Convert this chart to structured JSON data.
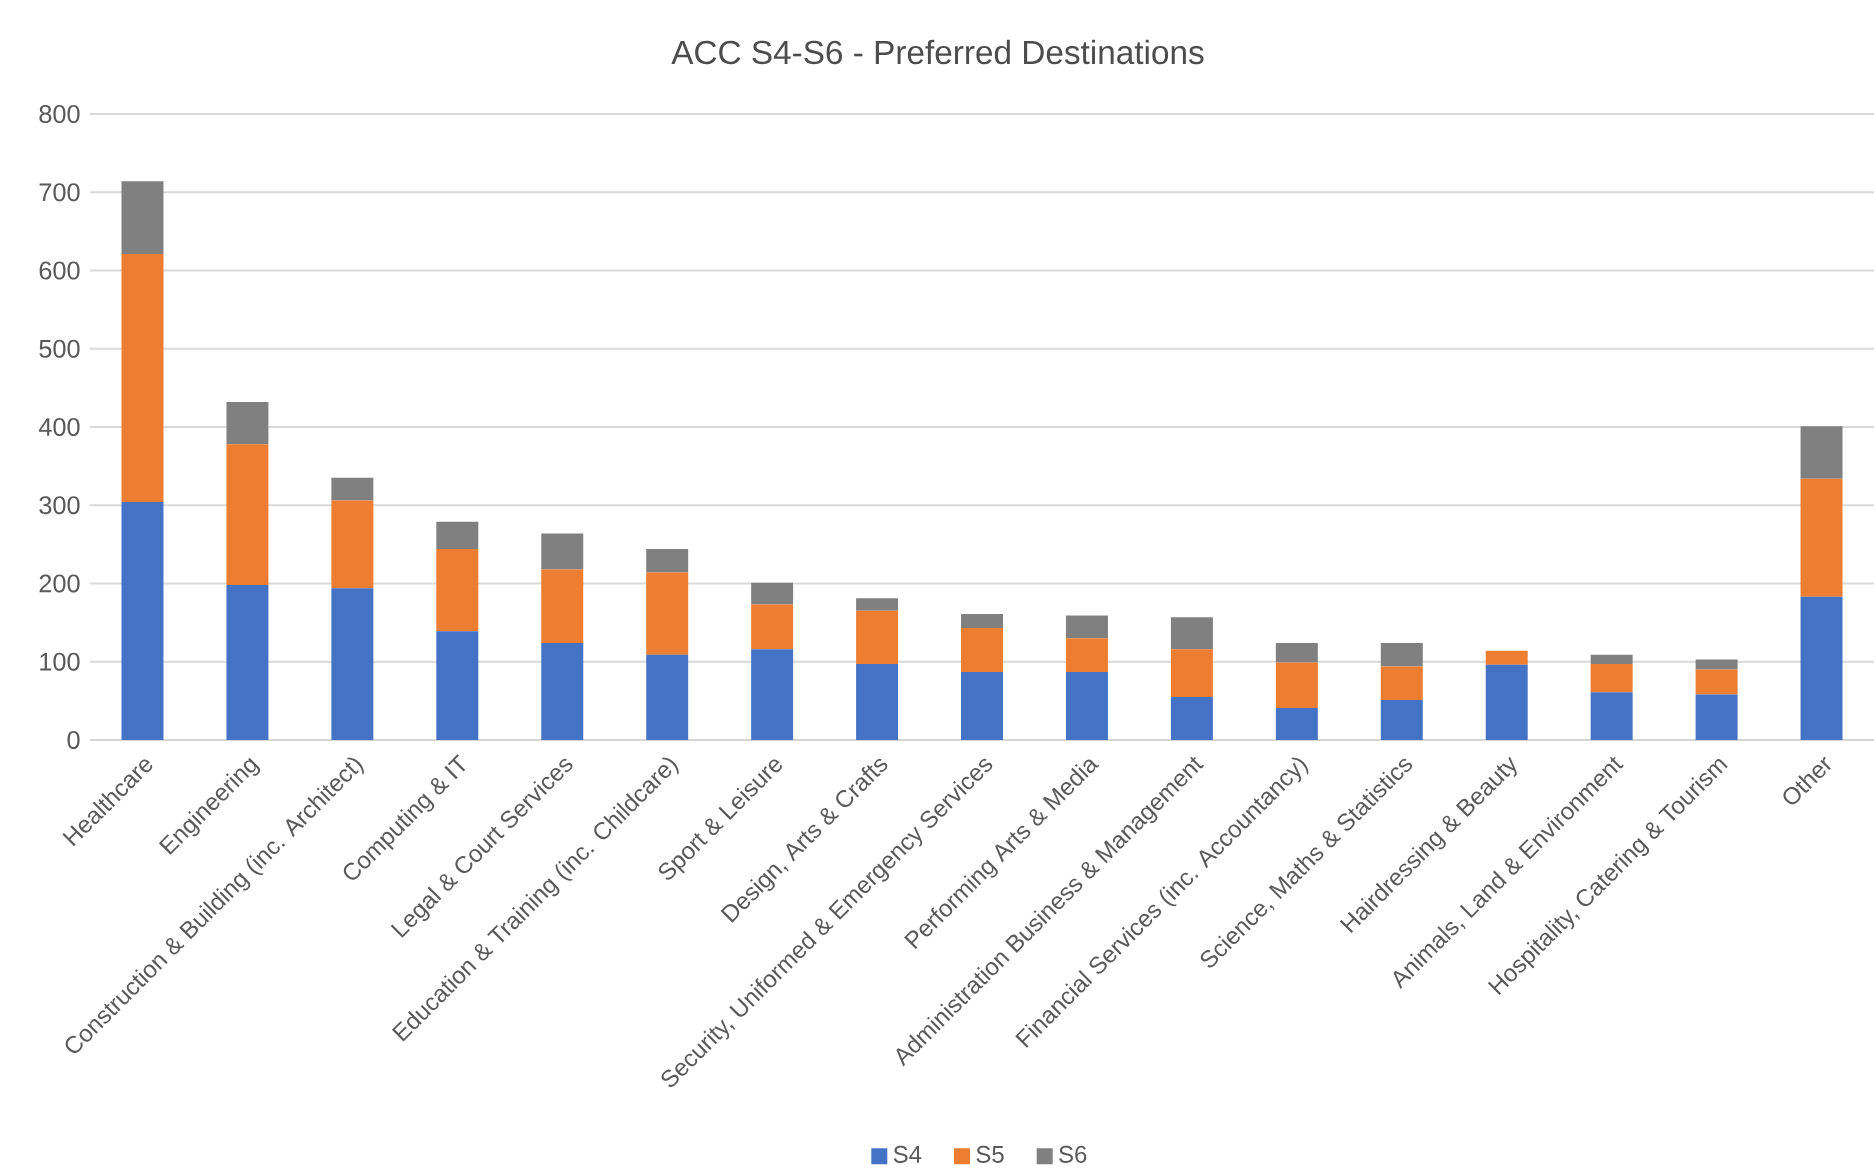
{
  "chart_data": {
    "type": "bar",
    "stacked": true,
    "title": "ACC S4-S6 - Preferred Destinations",
    "categories": [
      "Healthcare",
      "Engineering",
      "Construction & Building (inc. Architect)",
      "Computing & IT",
      "Legal & Court Services",
      "Education & Training (inc. Childcare)",
      "Sport & Leisure",
      "Design, Arts & Crafts",
      "Security, Uniformed & Emergency Services",
      "Performing Arts & Media",
      "Administration Business & Management",
      "Financial Services (inc. Accountancy)",
      "Science, Maths & Statistics",
      "Hairdressing & Beauty",
      "Animals, Land & Environment",
      "Hospitality, Catering & Tourism",
      "Other"
    ],
    "series": [
      {
        "name": "S4",
        "color": "#4472c4",
        "values": [
          304,
          198,
          194,
          139,
          124,
          109,
          116,
          97,
          87,
          87,
          55,
          41,
          51,
          96,
          61,
          58,
          183
        ]
      },
      {
        "name": "S5",
        "color": "#ed7d31",
        "values": [
          317,
          180,
          112,
          105,
          94,
          105,
          57,
          68,
          56,
          43,
          61,
          58,
          43,
          18,
          36,
          32,
          151
        ]
      },
      {
        "name": "S6",
        "color": "#808080",
        "values": [
          93,
          54,
          29,
          35,
          46,
          30,
          28,
          16,
          18,
          29,
          41,
          25,
          30,
          0,
          12,
          13,
          67
        ]
      }
    ],
    "ylim": [
      0,
      800
    ],
    "yticks": [
      0,
      100,
      200,
      300,
      400,
      500,
      600,
      700,
      800
    ],
    "grid": "y",
    "legend": "bottom"
  }
}
